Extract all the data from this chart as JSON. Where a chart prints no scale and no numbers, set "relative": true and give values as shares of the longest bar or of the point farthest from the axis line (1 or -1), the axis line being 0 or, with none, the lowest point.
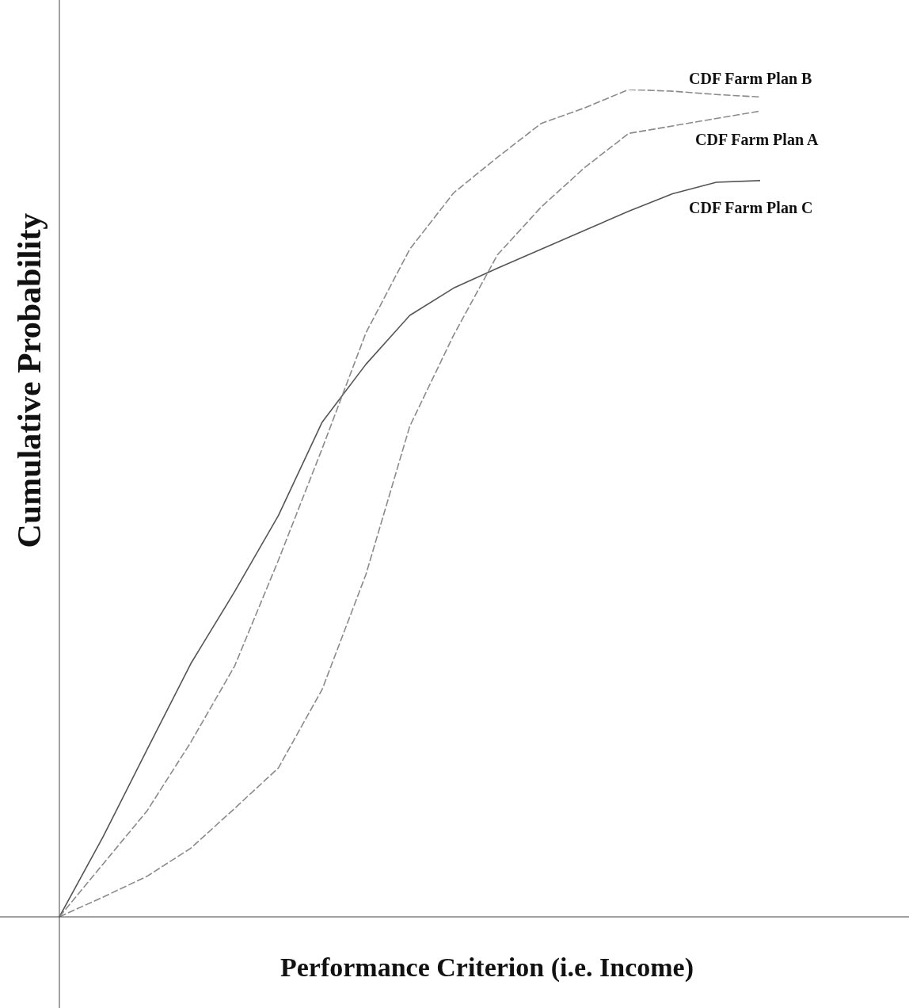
{
  "chart_data": {
    "type": "line",
    "relative": true,
    "xlabel": "Performance Criterion (i.e. Income)",
    "ylabel": "Cumulative Probability",
    "legend": false,
    "marker": "none",
    "categories": [
      null,
      null,
      null,
      null,
      null,
      null,
      null,
      null,
      null,
      null,
      null,
      null,
      null,
      null,
      null,
      null,
      null
    ],
    "series": [
      {
        "name": "CDF Farm Plan B",
        "color": "#8a8a8a",
        "line_style": "dashed",
        "values": [
          0,
          0.064,
          0.128,
          0.211,
          0.303,
          0.431,
          0.566,
          0.706,
          0.807,
          0.875,
          0.918,
          0.959,
          0.978,
          1.0,
          0.998,
          0.994,
          0.991
        ]
      },
      {
        "name": "CDF Farm Plan A",
        "color": "#8a8a8a",
        "line_style": "dashed",
        "values": [
          0,
          0.024,
          0.049,
          0.083,
          0.131,
          0.18,
          0.275,
          0.414,
          0.593,
          0.703,
          0.8,
          0.858,
          0.906,
          0.947,
          0.956,
          0.965,
          0.974
        ]
      },
      {
        "name": "CDF Farm Plan C",
        "color": "#555555",
        "line_style": "solid",
        "values": [
          0,
          0.097,
          0.202,
          0.306,
          0.393,
          0.485,
          0.598,
          0.668,
          0.727,
          0.76,
          0.784,
          0.807,
          0.83,
          0.853,
          0.874,
          0.888,
          0.89
        ]
      }
    ]
  }
}
